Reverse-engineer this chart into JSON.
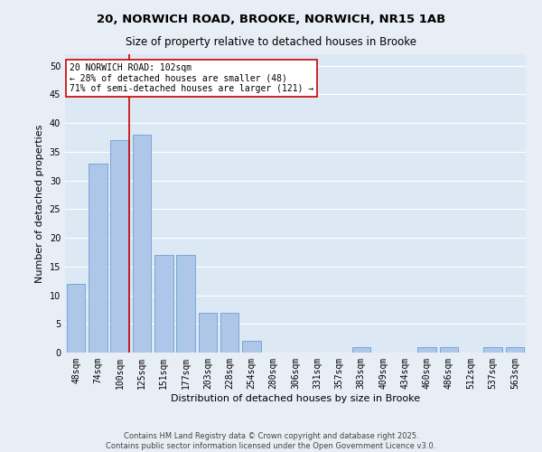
{
  "title_line1": "20, NORWICH ROAD, BROOKE, NORWICH, NR15 1AB",
  "title_line2": "Size of property relative to detached houses in Brooke",
  "xlabel": "Distribution of detached houses by size in Brooke",
  "ylabel": "Number of detached properties",
  "categories": [
    "48sqm",
    "74sqm",
    "100sqm",
    "125sqm",
    "151sqm",
    "177sqm",
    "203sqm",
    "228sqm",
    "254sqm",
    "280sqm",
    "306sqm",
    "331sqm",
    "357sqm",
    "383sqm",
    "409sqm",
    "434sqm",
    "460sqm",
    "486sqm",
    "512sqm",
    "537sqm",
    "563sqm"
  ],
  "values": [
    12,
    33,
    37,
    38,
    17,
    17,
    7,
    7,
    2,
    0,
    0,
    0,
    0,
    1,
    0,
    0,
    1,
    1,
    0,
    1,
    1
  ],
  "bar_color": "#aec6e8",
  "bar_edge_color": "#6a9fd8",
  "vline_color": "#cc0000",
  "vline_x_index": 2,
  "background_color": "#dce9f5",
  "fig_background_color": "#e8eef5",
  "grid_color": "#ffffff",
  "annotation_text": "20 NORWICH ROAD: 102sqm\n← 28% of detached houses are smaller (48)\n71% of semi-detached houses are larger (121) →",
  "annotation_box_facecolor": "#ffffff",
  "annotation_box_edgecolor": "#cc0000",
  "footer_line1": "Contains HM Land Registry data © Crown copyright and database right 2025.",
  "footer_line2": "Contains public sector information licensed under the Open Government Licence v3.0.",
  "ylim": [
    0,
    52
  ],
  "yticks": [
    0,
    5,
    10,
    15,
    20,
    25,
    30,
    35,
    40,
    45,
    50
  ],
  "title1_fontsize": 9.5,
  "title2_fontsize": 8.5,
  "xlabel_fontsize": 8,
  "ylabel_fontsize": 8,
  "tick_fontsize": 7,
  "annotation_fontsize": 7,
  "footer_fontsize": 6
}
